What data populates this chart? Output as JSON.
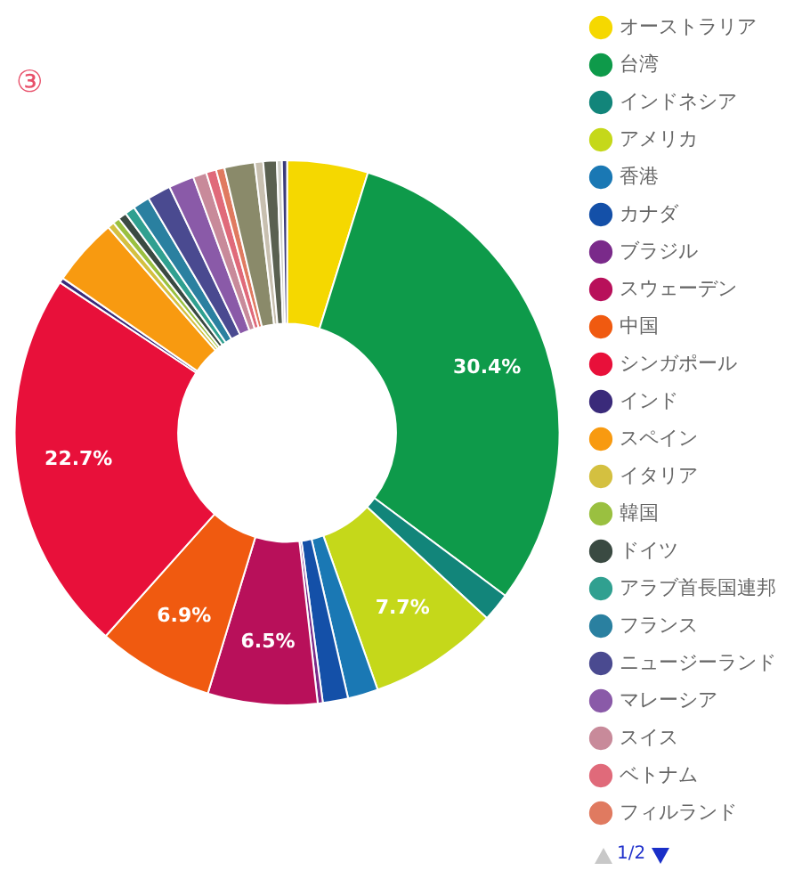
{
  "chart_data": {
    "type": "donut",
    "title": "③",
    "categories": [
      "オーストラリア",
      "台湾",
      "インドネシア",
      "アメリカ",
      "香港",
      "カナダ",
      "ブラジル",
      "スウェーデン",
      "中国",
      "シンガポール",
      "インド",
      "スペイン",
      "イタリア",
      "韓国",
      "ドイツ",
      "アラブ首長国連邦",
      "フランス",
      "ニュージーランド",
      "マレーシア",
      "スイス",
      "ベトナム",
      "フィルランド",
      null,
      null,
      null,
      null,
      null
    ],
    "values": [
      4.8,
      30.4,
      1.7,
      7.7,
      1.8,
      1.5,
      0.3,
      6.5,
      6.9,
      22.7,
      0.3,
      4.0,
      0.4,
      0.4,
      0.5,
      0.6,
      1.0,
      1.4,
      1.5,
      0.8,
      0.6,
      0.5,
      1.8,
      0.5,
      0.8,
      0.3,
      0.3
    ],
    "colors": [
      "#f5d800",
      "#0e9a4a",
      "#12857a",
      "#c5d81a",
      "#1a78b4",
      "#1450a8",
      "#7a2a8a",
      "#b8105a",
      "#f05a10",
      "#e8103a",
      "#3a2a7a",
      "#f89a10",
      "#d4c040",
      "#9ac040",
      "#3a4a42",
      "#30a090",
      "#2a80a0",
      "#4a4a90",
      "#8a5aa8",
      "#c88a9a",
      "#e06a7a",
      "#e07a60",
      "#8a8a6a",
      "#c8c0b0",
      "#5a6050",
      "#d0d0c8",
      "#3a3a7a"
    ],
    "value_labels": [
      null,
      "30.4%",
      null,
      "7.7%",
      null,
      null,
      null,
      "6.5%",
      "6.9%",
      "22.7%",
      null,
      null,
      null,
      null,
      null,
      null,
      null,
      null,
      null,
      null,
      null,
      null,
      null,
      null,
      null,
      null,
      null
    ],
    "legend": "right",
    "annotations": [
      "1/2"
    ]
  }
}
